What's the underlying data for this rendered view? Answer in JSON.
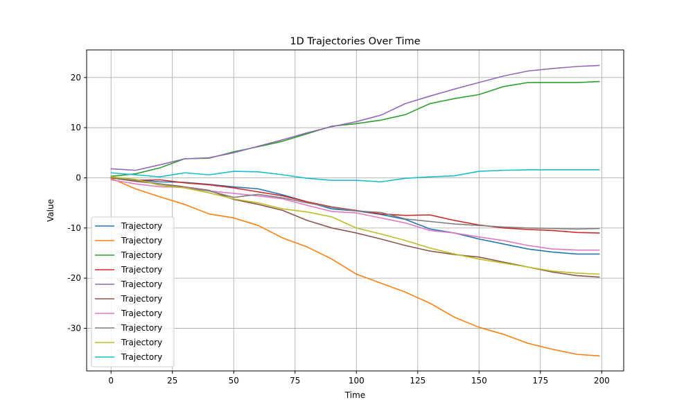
{
  "chart_data": {
    "type": "line",
    "title": "1D Trajectories Over Time",
    "xlabel": "Time",
    "ylabel": "Value",
    "xlim": [
      -9.95,
      208.95
    ],
    "ylim": [
      -38.5,
      25.5
    ],
    "xticks": [
      0,
      25,
      50,
      75,
      100,
      125,
      150,
      175,
      200
    ],
    "yticks": [
      -30,
      -20,
      -10,
      0,
      10,
      20
    ],
    "grid": true,
    "legend_position": "lower-left",
    "series": [
      {
        "name": "Trajectory",
        "color": "#1f77b4",
        "points": [
          [
            0,
            0.2
          ],
          [
            10,
            -0.4
          ],
          [
            20,
            -0.8
          ],
          [
            30,
            -0.9
          ],
          [
            40,
            -1.3
          ],
          [
            50,
            -1.8
          ],
          [
            60,
            -2.2
          ],
          [
            70,
            -3.4
          ],
          [
            80,
            -4.8
          ],
          [
            90,
            -6.2
          ],
          [
            100,
            -6.6
          ],
          [
            110,
            -7.3
          ],
          [
            120,
            -8.3
          ],
          [
            130,
            -10.2
          ],
          [
            140,
            -11.0
          ],
          [
            150,
            -12.2
          ],
          [
            160,
            -13.2
          ],
          [
            170,
            -14.2
          ],
          [
            180,
            -14.8
          ],
          [
            190,
            -15.2
          ],
          [
            199,
            -15.2
          ]
        ]
      },
      {
        "name": "Trajectory",
        "color": "#ff7f0e",
        "points": [
          [
            0,
            -0.1
          ],
          [
            10,
            -2.2
          ],
          [
            20,
            -3.8
          ],
          [
            30,
            -5.3
          ],
          [
            40,
            -7.2
          ],
          [
            50,
            -8.0
          ],
          [
            60,
            -9.5
          ],
          [
            70,
            -12.0
          ],
          [
            80,
            -13.8
          ],
          [
            90,
            -16.2
          ],
          [
            100,
            -19.2
          ],
          [
            110,
            -21.0
          ],
          [
            120,
            -22.8
          ],
          [
            130,
            -25.0
          ],
          [
            140,
            -27.8
          ],
          [
            150,
            -29.8
          ],
          [
            160,
            -31.2
          ],
          [
            170,
            -33.0
          ],
          [
            180,
            -34.2
          ],
          [
            190,
            -35.2
          ],
          [
            199,
            -35.5
          ]
        ]
      },
      {
        "name": "Trajectory",
        "color": "#2ca02c",
        "points": [
          [
            0,
            0.3
          ],
          [
            10,
            0.8
          ],
          [
            20,
            2.0
          ],
          [
            30,
            3.8
          ],
          [
            40,
            3.9
          ],
          [
            50,
            5.2
          ],
          [
            60,
            6.2
          ],
          [
            70,
            7.3
          ],
          [
            80,
            8.8
          ],
          [
            90,
            10.3
          ],
          [
            100,
            10.8
          ],
          [
            110,
            11.5
          ],
          [
            120,
            12.6
          ],
          [
            130,
            14.8
          ],
          [
            140,
            15.8
          ],
          [
            150,
            16.6
          ],
          [
            160,
            18.2
          ],
          [
            170,
            19.0
          ],
          [
            180,
            19.0
          ],
          [
            190,
            19.0
          ],
          [
            199,
            19.2
          ]
        ]
      },
      {
        "name": "Trajectory",
        "color": "#d62728",
        "points": [
          [
            0,
            0.0
          ],
          [
            10,
            -0.5
          ],
          [
            20,
            -0.4
          ],
          [
            30,
            -1.0
          ],
          [
            40,
            -1.4
          ],
          [
            50,
            -2.0
          ],
          [
            60,
            -2.8
          ],
          [
            70,
            -3.6
          ],
          [
            80,
            -4.8
          ],
          [
            90,
            -5.8
          ],
          [
            100,
            -6.5
          ],
          [
            110,
            -7.2
          ],
          [
            120,
            -7.5
          ],
          [
            130,
            -7.4
          ],
          [
            140,
            -8.5
          ],
          [
            150,
            -9.4
          ],
          [
            160,
            -10.0
          ],
          [
            170,
            -10.3
          ],
          [
            180,
            -10.5
          ],
          [
            190,
            -10.9
          ],
          [
            199,
            -11.0
          ]
        ]
      },
      {
        "name": "Trajectory",
        "color": "#9467bd",
        "points": [
          [
            0,
            1.8
          ],
          [
            10,
            1.5
          ],
          [
            20,
            2.6
          ],
          [
            30,
            3.8
          ],
          [
            40,
            4.0
          ],
          [
            50,
            5.0
          ],
          [
            60,
            6.3
          ],
          [
            70,
            7.6
          ],
          [
            80,
            9.0
          ],
          [
            90,
            10.2
          ],
          [
            100,
            11.2
          ],
          [
            110,
            12.5
          ],
          [
            120,
            14.8
          ],
          [
            130,
            16.3
          ],
          [
            140,
            17.7
          ],
          [
            150,
            19.0
          ],
          [
            160,
            20.3
          ],
          [
            170,
            21.3
          ],
          [
            180,
            21.8
          ],
          [
            190,
            22.2
          ],
          [
            199,
            22.4
          ]
        ]
      },
      {
        "name": "Trajectory",
        "color": "#8c564b",
        "points": [
          [
            0,
            0.0
          ],
          [
            10,
            -0.7
          ],
          [
            20,
            -1.2
          ],
          [
            30,
            -1.8
          ],
          [
            40,
            -2.5
          ],
          [
            50,
            -4.3
          ],
          [
            60,
            -5.3
          ],
          [
            70,
            -6.5
          ],
          [
            80,
            -8.5
          ],
          [
            90,
            -10.0
          ],
          [
            100,
            -11.0
          ],
          [
            110,
            -12.2
          ],
          [
            120,
            -13.5
          ],
          [
            130,
            -14.6
          ],
          [
            140,
            -15.3
          ],
          [
            150,
            -15.8
          ],
          [
            160,
            -16.8
          ],
          [
            170,
            -17.8
          ],
          [
            180,
            -18.8
          ],
          [
            190,
            -19.5
          ],
          [
            199,
            -19.8
          ]
        ]
      },
      {
        "name": "Trajectory",
        "color": "#e377c2",
        "points": [
          [
            0,
            -0.4
          ],
          [
            10,
            -1.2
          ],
          [
            20,
            -1.8
          ],
          [
            30,
            -1.9
          ],
          [
            40,
            -2.6
          ],
          [
            50,
            -3.1
          ],
          [
            60,
            -3.6
          ],
          [
            70,
            -4.2
          ],
          [
            80,
            -5.5
          ],
          [
            90,
            -6.7
          ],
          [
            100,
            -7.0
          ],
          [
            110,
            -8.0
          ],
          [
            120,
            -9.0
          ],
          [
            130,
            -10.5
          ],
          [
            140,
            -11.0
          ],
          [
            150,
            -11.8
          ],
          [
            160,
            -12.5
          ],
          [
            170,
            -13.5
          ],
          [
            180,
            -14.2
          ],
          [
            190,
            -14.4
          ],
          [
            199,
            -14.4
          ]
        ]
      },
      {
        "name": "Trajectory",
        "color": "#7f7f7f",
        "points": [
          [
            0,
            0.1
          ],
          [
            10,
            -0.5
          ],
          [
            20,
            -1.2
          ],
          [
            30,
            -2.0
          ],
          [
            40,
            -2.6
          ],
          [
            50,
            -3.9
          ],
          [
            60,
            -3.3
          ],
          [
            70,
            -4.0
          ],
          [
            80,
            -5.0
          ],
          [
            90,
            -5.9
          ],
          [
            100,
            -6.6
          ],
          [
            110,
            -6.9
          ],
          [
            120,
            -8.2
          ],
          [
            130,
            -8.7
          ],
          [
            140,
            -9.2
          ],
          [
            150,
            -9.5
          ],
          [
            160,
            -9.8
          ],
          [
            170,
            -10.0
          ],
          [
            180,
            -10.1
          ],
          [
            190,
            -10.2
          ],
          [
            199,
            -10.1
          ]
        ]
      },
      {
        "name": "Trajectory",
        "color": "#bcbd22",
        "points": [
          [
            0,
            0.2
          ],
          [
            10,
            -0.3
          ],
          [
            20,
            -1.5
          ],
          [
            30,
            -2.0
          ],
          [
            40,
            -3.0
          ],
          [
            50,
            -4.2
          ],
          [
            60,
            -5.0
          ],
          [
            70,
            -6.2
          ],
          [
            80,
            -6.8
          ],
          [
            90,
            -7.8
          ],
          [
            100,
            -10.0
          ],
          [
            110,
            -11.2
          ],
          [
            120,
            -12.5
          ],
          [
            130,
            -14.0
          ],
          [
            140,
            -15.2
          ],
          [
            150,
            -16.2
          ],
          [
            160,
            -17.0
          ],
          [
            170,
            -17.8
          ],
          [
            180,
            -18.6
          ],
          [
            190,
            -19.0
          ],
          [
            199,
            -19.2
          ]
        ]
      },
      {
        "name": "Trajectory",
        "color": "#17becf",
        "points": [
          [
            0,
            1.0
          ],
          [
            10,
            0.6
          ],
          [
            20,
            0.2
          ],
          [
            30,
            1.0
          ],
          [
            40,
            0.6
          ],
          [
            50,
            1.3
          ],
          [
            60,
            1.2
          ],
          [
            70,
            0.6
          ],
          [
            80,
            -0.1
          ],
          [
            90,
            -0.5
          ],
          [
            100,
            -0.5
          ],
          [
            110,
            -0.8
          ],
          [
            120,
            -0.1
          ],
          [
            130,
            0.2
          ],
          [
            140,
            0.4
          ],
          [
            150,
            1.3
          ],
          [
            160,
            1.5
          ],
          [
            170,
            1.6
          ],
          [
            180,
            1.6
          ],
          [
            190,
            1.6
          ],
          [
            199,
            1.6
          ]
        ]
      }
    ]
  }
}
